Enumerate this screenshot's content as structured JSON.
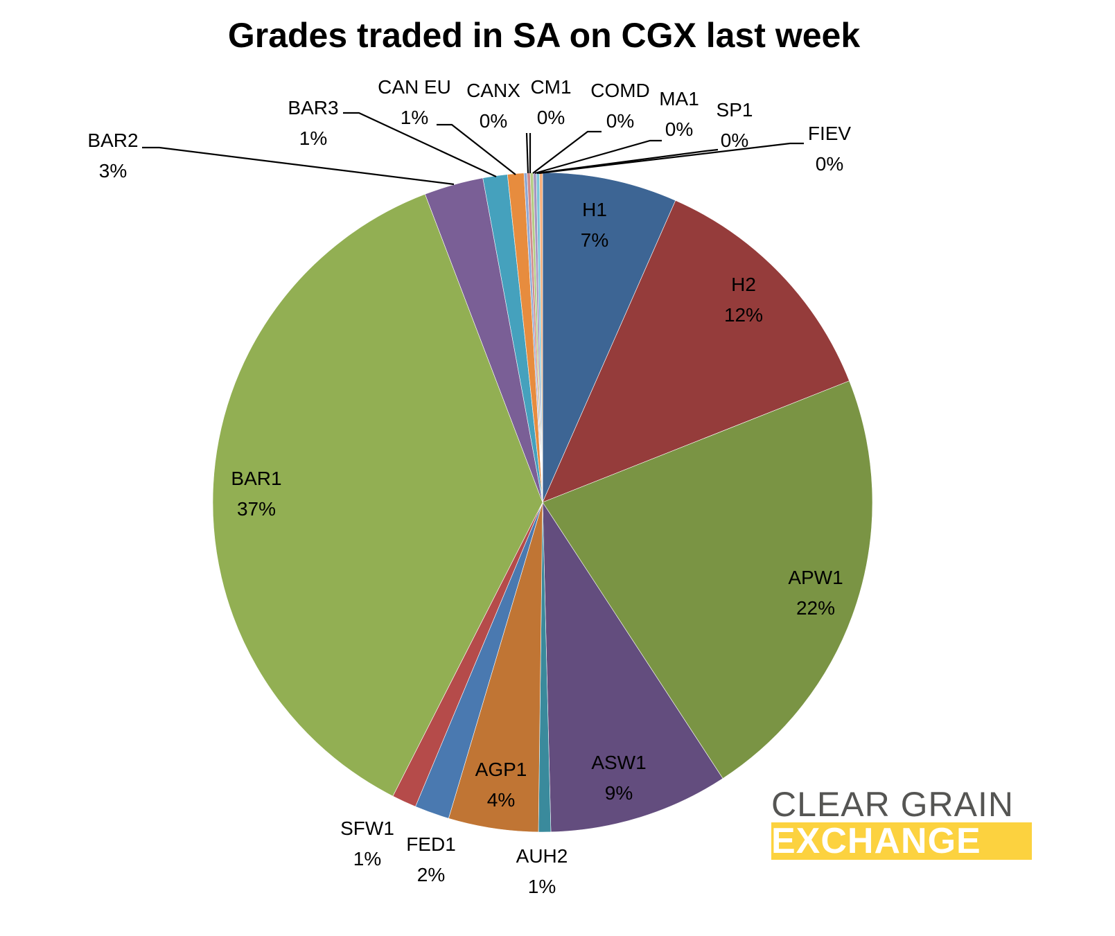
{
  "chart_data": {
    "type": "pie",
    "title": "Grades traded in SA on CGX last week",
    "slices": [
      {
        "label": "H1",
        "value": 6.6,
        "pct_label": "7%",
        "color": "#3d6594"
      },
      {
        "label": "H2",
        "value": 12.4,
        "pct_label": "12%",
        "color": "#953c3b"
      },
      {
        "label": "APW1",
        "value": 21.8,
        "pct_label": "22%",
        "color": "#7a9444"
      },
      {
        "label": "ASW1",
        "value": 8.8,
        "pct_label": "9%",
        "color": "#634d7e"
      },
      {
        "label": "AUH2",
        "value": 0.6,
        "pct_label": "1%",
        "color": "#3a8a9c"
      },
      {
        "label": "AGP1",
        "value": 4.4,
        "pct_label": "4%",
        "color": "#c07534"
      },
      {
        "label": "FED1",
        "value": 1.7,
        "pct_label": "2%",
        "color": "#4a79b0"
      },
      {
        "label": "SFW1",
        "value": 1.2,
        "pct_label": "1%",
        "color": "#b54b4a"
      },
      {
        "label": "BAR1",
        "value": 36.7,
        "pct_label": "37%",
        "color": "#92af53"
      },
      {
        "label": "BAR2",
        "value": 2.9,
        "pct_label": "3%",
        "color": "#7a5f96"
      },
      {
        "label": "BAR3",
        "value": 1.2,
        "pct_label": "1%",
        "color": "#45a1bd"
      },
      {
        "label": "CAN EU",
        "value": 0.8,
        "pct_label": "1%",
        "color": "#e78c3e"
      },
      {
        "label": "CANX",
        "value": 0.15,
        "pct_label": "0%",
        "color": "#8fa9d4"
      },
      {
        "label": "CM1",
        "value": 0.15,
        "pct_label": "0%",
        "color": "#d08a8a"
      },
      {
        "label": "COMD",
        "value": 0.15,
        "pct_label": "0%",
        "color": "#b3cc85"
      },
      {
        "label": "MA1",
        "value": 0.15,
        "pct_label": "0%",
        "color": "#a795c0"
      },
      {
        "label": "SP1",
        "value": 0.15,
        "pct_label": "0%",
        "color": "#7cc6d8"
      },
      {
        "label": "FIEV",
        "value": 0.15,
        "pct_label": "0%",
        "color": "#f8b07c"
      }
    ]
  },
  "logo": {
    "line1": "CLEAR GRAIN",
    "line2": "EXCHANGE"
  }
}
